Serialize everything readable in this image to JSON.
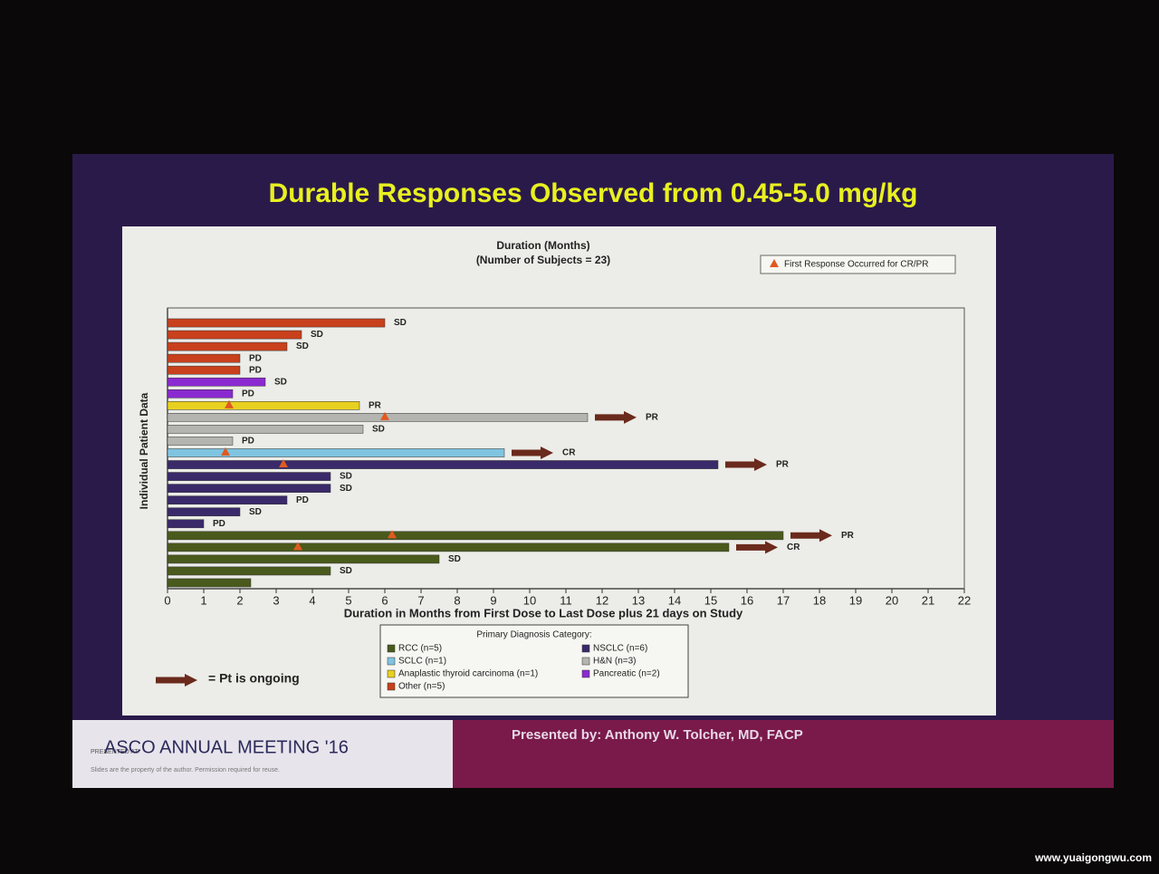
{
  "slide_title": "Durable Responses Observed from 0.45-5.0 mg/kg",
  "chart_data": {
    "type": "swimmer",
    "title": "Duration (Months)",
    "subtitle": "(Number of Subjects = 23)",
    "x_label": "Duration in Months from First Dose to Last Dose plus 21 days on Study",
    "y_label": "Individual Patient Data",
    "xlim": [
      0,
      22
    ],
    "xticks": [
      0,
      1,
      2,
      3,
      4,
      5,
      6,
      7,
      8,
      9,
      10,
      11,
      12,
      13,
      14,
      15,
      16,
      17,
      18,
      19,
      20,
      21,
      22
    ],
    "legend_title": "Primary Diagnosis Category:",
    "groups": [
      {
        "name": "RCC (n=5)",
        "color": "#4a5a1c"
      },
      {
        "name": "NSCLC (n=6)",
        "color": "#3a2a6a"
      },
      {
        "name": "SCLC (n=1)",
        "color": "#7fc4e0"
      },
      {
        "name": "H&N (n=3)",
        "color": "#b4b4b0"
      },
      {
        "name": "Anaplastic thyroid carcinoma (n=1)",
        "color": "#e8d020"
      },
      {
        "name": "Pancreatic (n=2)",
        "color": "#8a2ad0"
      },
      {
        "name": "Other (n=5)",
        "color": "#c8401c"
      }
    ],
    "group_index": [
      6,
      6,
      6,
      6,
      6,
      5,
      5,
      4,
      3,
      3,
      3,
      2,
      1,
      1,
      1,
      1,
      1,
      1,
      0,
      0,
      0,
      0,
      0
    ],
    "values": [
      6.0,
      3.7,
      3.3,
      2.0,
      2.0,
      2.7,
      1.8,
      5.3,
      11.6,
      5.4,
      1.8,
      9.3,
      15.2,
      4.5,
      4.5,
      3.3,
      2.0,
      1.0,
      17.0,
      15.5,
      7.5,
      4.5,
      2.3
    ],
    "responses": [
      "SD",
      "SD",
      "SD",
      "PD",
      "PD",
      "SD",
      "PD",
      "PR",
      "PR",
      "SD",
      "PD",
      "CR",
      "PR",
      "SD",
      "SD",
      "PD",
      "SD",
      "PD",
      "PR",
      "CR",
      "SD",
      "SD",
      null
    ],
    "ongoing": [
      false,
      false,
      false,
      false,
      false,
      false,
      false,
      false,
      true,
      false,
      false,
      true,
      true,
      false,
      false,
      false,
      false,
      false,
      true,
      true,
      false,
      false,
      false
    ],
    "first_response": [
      null,
      null,
      null,
      null,
      null,
      null,
      null,
      1.7,
      6.0,
      null,
      null,
      1.6,
      3.2,
      null,
      null,
      null,
      null,
      null,
      6.2,
      3.6,
      null,
      null,
      null
    ],
    "marker_legend": "First Response Occurred for CR/PR",
    "ongoing_legend": "= Pt is ongoing",
    "marker_color": "#e05a20",
    "arrow_color": "#6a2a1c"
  },
  "footer": {
    "presented_at": "PRESENTED AT:",
    "meeting": "ASCO ANNUAL MEETING '16",
    "disclaimer": "Slides are the property of the author. Permission required for reuse.",
    "presenter": "Presented by: Anthony W. Tolcher, MD, FACP"
  },
  "watermark": "www.yuaigongwu.com"
}
